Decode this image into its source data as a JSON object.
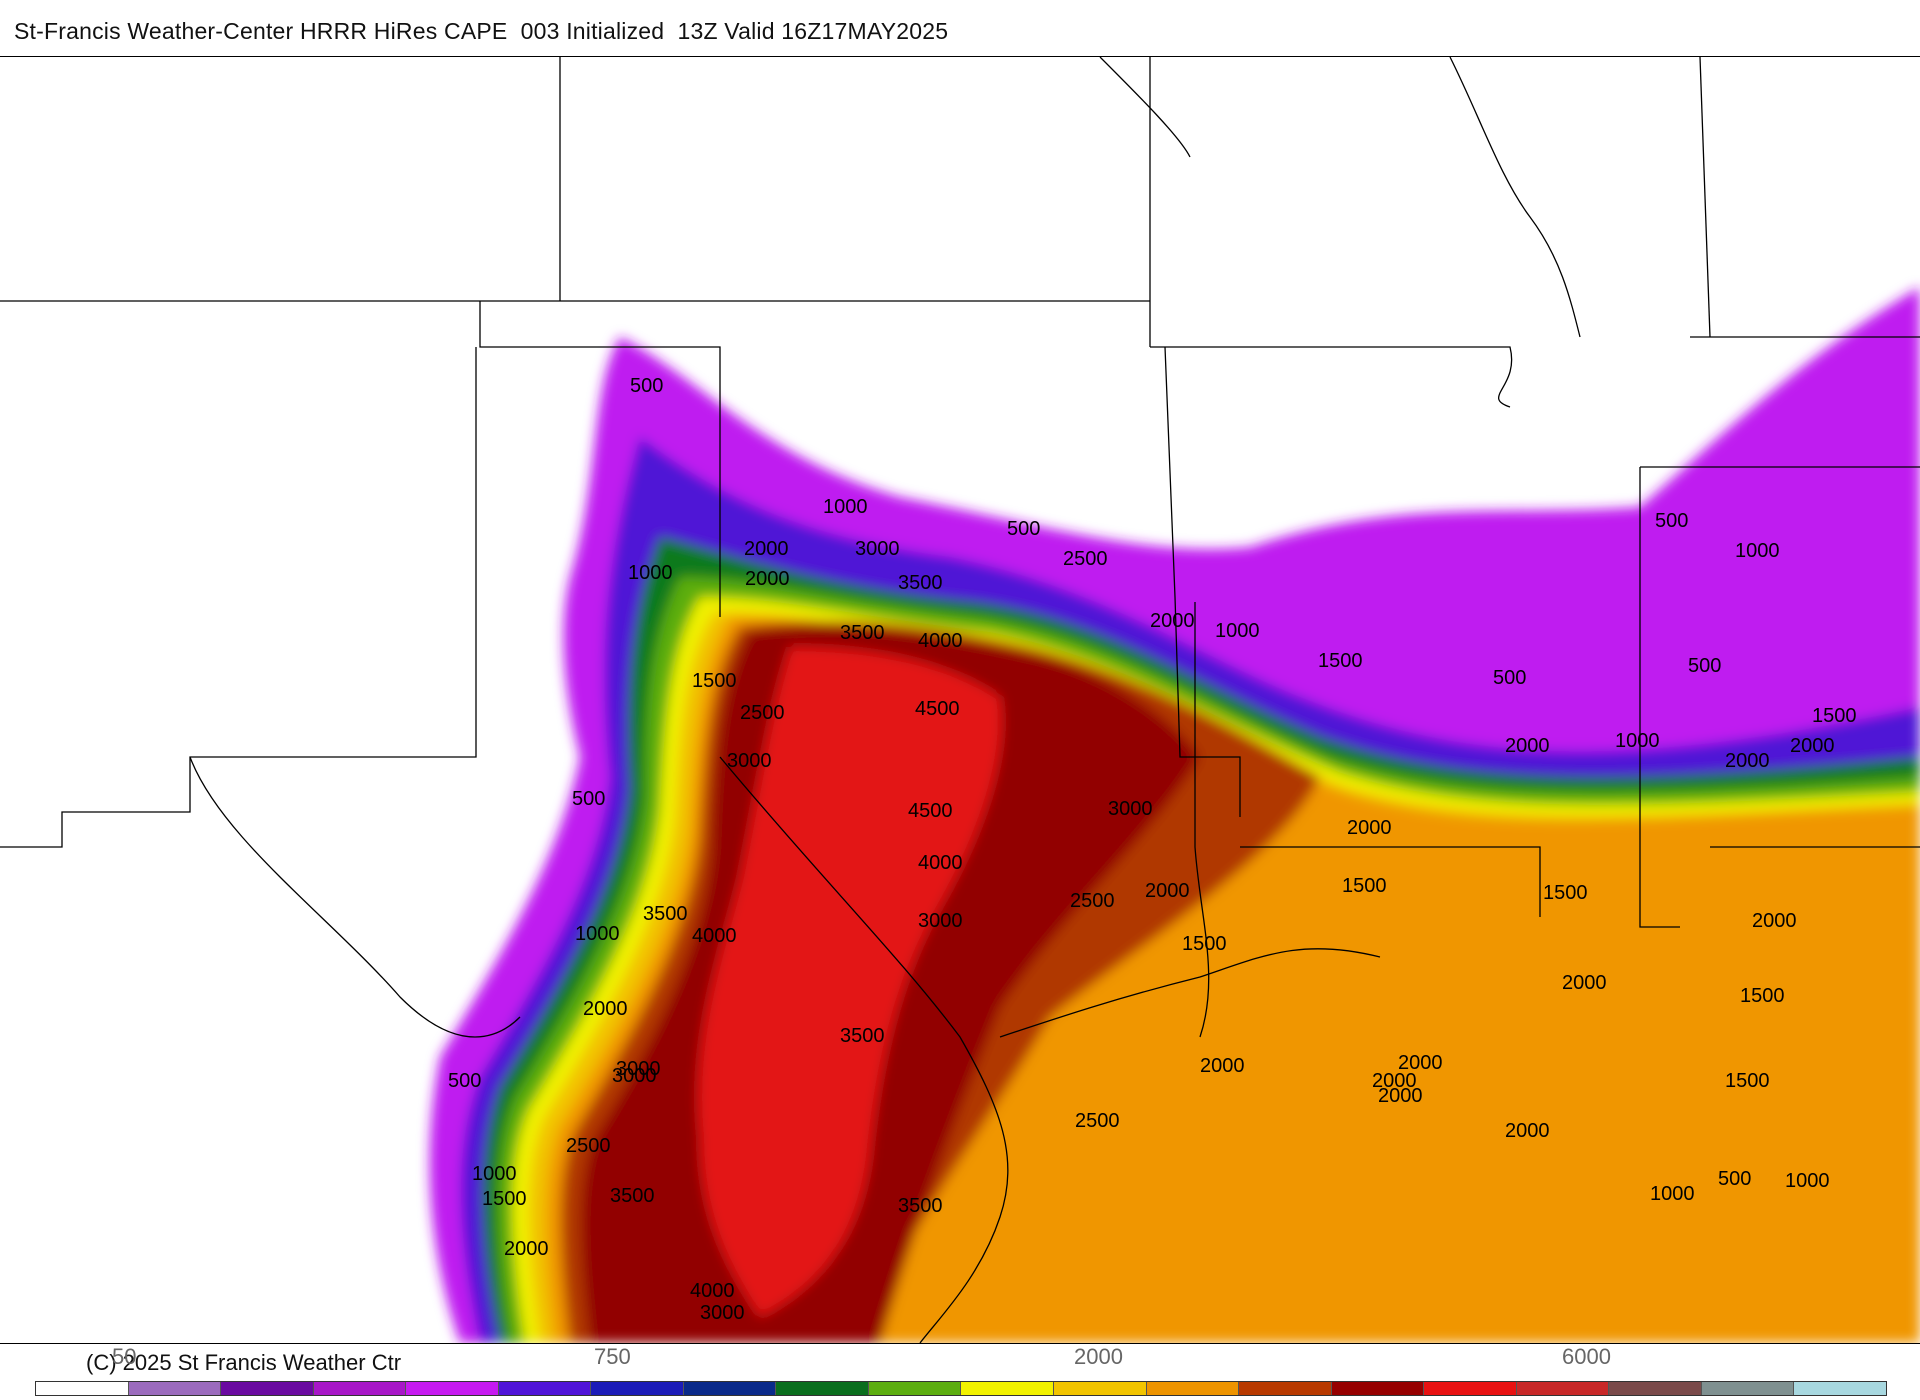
{
  "title": "St-Francis Weather-Center HRRR HiRes CAPE  003 Initialized  13Z Valid 16Z17MAY2025",
  "copyright": "(C) 2025 St Francis Weather Ctr",
  "colorbar": {
    "colors": [
      "#ffffff",
      "#9b6bbd",
      "#6a0aa0",
      "#a817c8",
      "#c61af0",
      "#5014d8",
      "#1c1cb8",
      "#0a2a8a",
      "#0a6e1e",
      "#5cad10",
      "#f2f200",
      "#f2c400",
      "#ee9400",
      "#b83a00",
      "#960000",
      "#e81212",
      "#c82828",
      "#7a4a4a",
      "#7f9090",
      "#a8d8e0"
    ],
    "tick_labels": [
      "50",
      "750",
      "2000",
      "6000"
    ]
  },
  "map": {
    "fill_levels": [
      "#bf1cf0",
      "#4f16d6",
      "#0e7a1e",
      "#5cad10",
      "#f0f000",
      "#f2c200",
      "#f09600",
      "#b03800",
      "#920000",
      "#e31515"
    ],
    "contour_labels": [
      "500",
      "1000",
      "1500",
      "2000",
      "2500",
      "3000",
      "3500",
      "4000",
      "4500",
      "500",
      "1000",
      "2000",
      "3000",
      "3500",
      "4000",
      "4500",
      "500",
      "1000",
      "1500",
      "2000",
      "2500",
      "3000",
      "3500",
      "4000",
      "500",
      "1000",
      "2000",
      "3000",
      "3500",
      "4000",
      "3000",
      "3500",
      "2000",
      "2500",
      "3000",
      "1500",
      "2000",
      "2500",
      "500",
      "1000",
      "1500",
      "2000",
      "2000",
      "2000",
      "1500",
      "1500",
      "2000",
      "2000",
      "500",
      "1000",
      "500",
      "1000",
      "1500",
      "2000",
      "2000",
      "1500",
      "1500",
      "1000",
      "500",
      "1000",
      "2000",
      "2500",
      "2000",
      "2000",
      "2000",
      "3500",
      "3000"
    ]
  }
}
